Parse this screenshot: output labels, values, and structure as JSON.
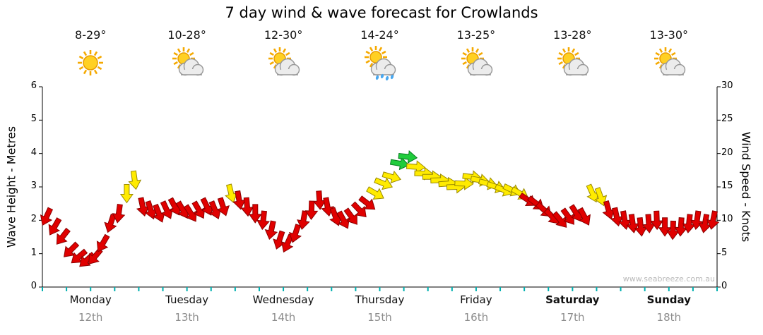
{
  "title": "7 day wind & wave forecast for Crowlands",
  "watermark": "www.seabreeze.com.au",
  "axes": {
    "left_label": "Wave Height - Metres",
    "right_label": "Wind Speed - Knots"
  },
  "days": [
    {
      "name": "Monday",
      "date": "12th",
      "temp": "8-29°",
      "icon": "sunny",
      "bold": false
    },
    {
      "name": "Tuesday",
      "date": "13th",
      "temp": "10-28°",
      "icon": "partly-cloudy",
      "bold": false
    },
    {
      "name": "Wednesday",
      "date": "14th",
      "temp": "12-30°",
      "icon": "partly-cloudy",
      "bold": false
    },
    {
      "name": "Thursday",
      "date": "15th",
      "temp": "14-24°",
      "icon": "showers",
      "bold": false
    },
    {
      "name": "Friday",
      "date": "16th",
      "temp": "13-25°",
      "icon": "partly-cloudy",
      "bold": false
    },
    {
      "name": "Saturday",
      "date": "17th",
      "temp": "13-28°",
      "icon": "partly-cloudy",
      "bold": true
    },
    {
      "name": "Sunday",
      "date": "18th",
      "temp": "13-30°",
      "icon": "partly-cloudy",
      "bold": true
    }
  ],
  "chart_data": {
    "type": "scatter",
    "marker": "wind-arrow",
    "title": "7 day wind & wave forecast for Crowlands",
    "categories": [
      "Monday 12th",
      "Tuesday 13th",
      "Wednesday 14th",
      "Thursday 15th",
      "Friday 16th",
      "Saturday 17th",
      "Sunday 18th"
    ],
    "y_left": {
      "label": "Wave Height - Metres",
      "min": 0,
      "max": 6,
      "ticks": [
        0,
        1,
        2,
        3,
        4,
        5,
        6
      ]
    },
    "y_right": {
      "label": "Wind Speed - Knots",
      "min": 0,
      "max": 30,
      "ticks": [
        0,
        5,
        10,
        15,
        20,
        25,
        30
      ]
    },
    "points_per_day": 12,
    "wind_speed_knots": [
      10.5,
      9,
      7.5,
      5.5,
      4.5,
      4,
      4.5,
      6.5,
      9.5,
      11,
      14,
      16,
      12,
      11.5,
      11,
      11.5,
      12,
      11.5,
      11,
      11.5,
      12,
      11.5,
      12,
      14,
      13,
      12,
      11,
      10,
      8.5,
      7,
      6.5,
      8,
      10,
      11.5,
      13,
      12,
      10.5,
      10,
      10.5,
      11.5,
      12.5,
      14,
      15.5,
      16.5,
      18.5,
      19.5,
      18,
      17,
      16.5,
      16,
      15.5,
      15,
      15.5,
      16.5,
      16,
      15.5,
      15,
      14.5,
      14.5,
      14,
      13,
      12.5,
      11.5,
      10.5,
      10,
      10.5,
      11,
      10.5,
      14,
      13.5,
      11.5,
      10.5,
      10,
      9.5,
      9,
      9.5,
      10,
      9,
      8.5,
      9,
      9.5,
      10,
      9.5,
      10
    ],
    "wind_dir_deg": [
      205,
      210,
      218,
      225,
      230,
      228,
      220,
      210,
      198,
      188,
      180,
      172,
      168,
      162,
      158,
      155,
      152,
      150,
      148,
      150,
      154,
      158,
      162,
      166,
      170,
      175,
      180,
      186,
      192,
      198,
      204,
      198,
      190,
      182,
      176,
      170,
      160,
      152,
      144,
      136,
      128,
      120,
      112,
      106,
      100,
      96,
      94,
      92,
      90,
      88,
      86,
      88,
      92,
      96,
      100,
      104,
      108,
      112,
      116,
      120,
      124,
      128,
      132,
      136,
      140,
      144,
      148,
      152,
      156,
      160,
      164,
      168,
      170,
      172,
      174,
      176,
      178,
      180,
      182,
      184,
      186,
      188,
      190,
      192
    ],
    "color_scale": [
      {
        "min": 0,
        "fill": "#E00000",
        "stroke": "#8B0000",
        "label": "light"
      },
      {
        "min": 13.5,
        "fill": "#FFEB00",
        "stroke": "#9A8A00",
        "label": "moderate"
      },
      {
        "min": 18.5,
        "fill": "#1FCC3C",
        "stroke": "#067A1E",
        "label": "fresh"
      }
    ],
    "axis_tick_color": "#00B0B0",
    "legend": "off",
    "grid": "off"
  }
}
